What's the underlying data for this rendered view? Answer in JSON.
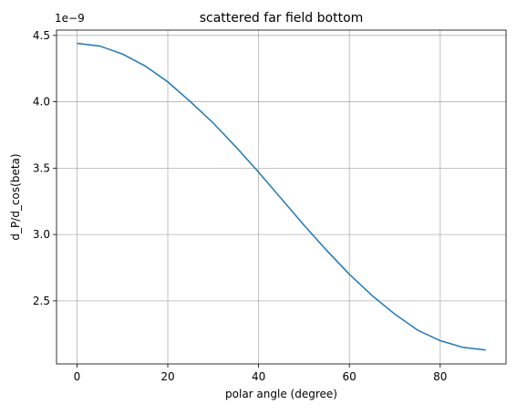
{
  "chart_data": {
    "type": "line",
    "title": "scattered far field bottom",
    "xlabel": "polar angle (degree)",
    "ylabel": "d_P/d_cos(beta)",
    "y_offset_label": "1e−9",
    "xlim": [
      -4.5,
      94.5
    ],
    "ylim": [
      2.025,
      4.54
    ],
    "xticks": [
      0,
      20,
      40,
      60,
      80
    ],
    "yticks": [
      2.5,
      3.0,
      3.5,
      4.0,
      4.5
    ],
    "xtick_labels": [
      "0",
      "20",
      "40",
      "60",
      "80"
    ],
    "ytick_labels": [
      "2.5",
      "3.0",
      "3.5",
      "4.0",
      "4.5"
    ],
    "grid": true,
    "series": [
      {
        "color": "#1f77b4",
        "x": [
          0,
          5,
          10,
          15,
          20,
          25,
          30,
          35,
          40,
          45,
          50,
          55,
          60,
          65,
          70,
          75,
          80,
          85,
          90
        ],
        "y": [
          4.44,
          4.42,
          4.36,
          4.27,
          4.15,
          4.0,
          3.84,
          3.66,
          3.47,
          3.27,
          3.07,
          2.88,
          2.7,
          2.54,
          2.4,
          2.28,
          2.2,
          2.15,
          2.13
        ]
      }
    ]
  }
}
